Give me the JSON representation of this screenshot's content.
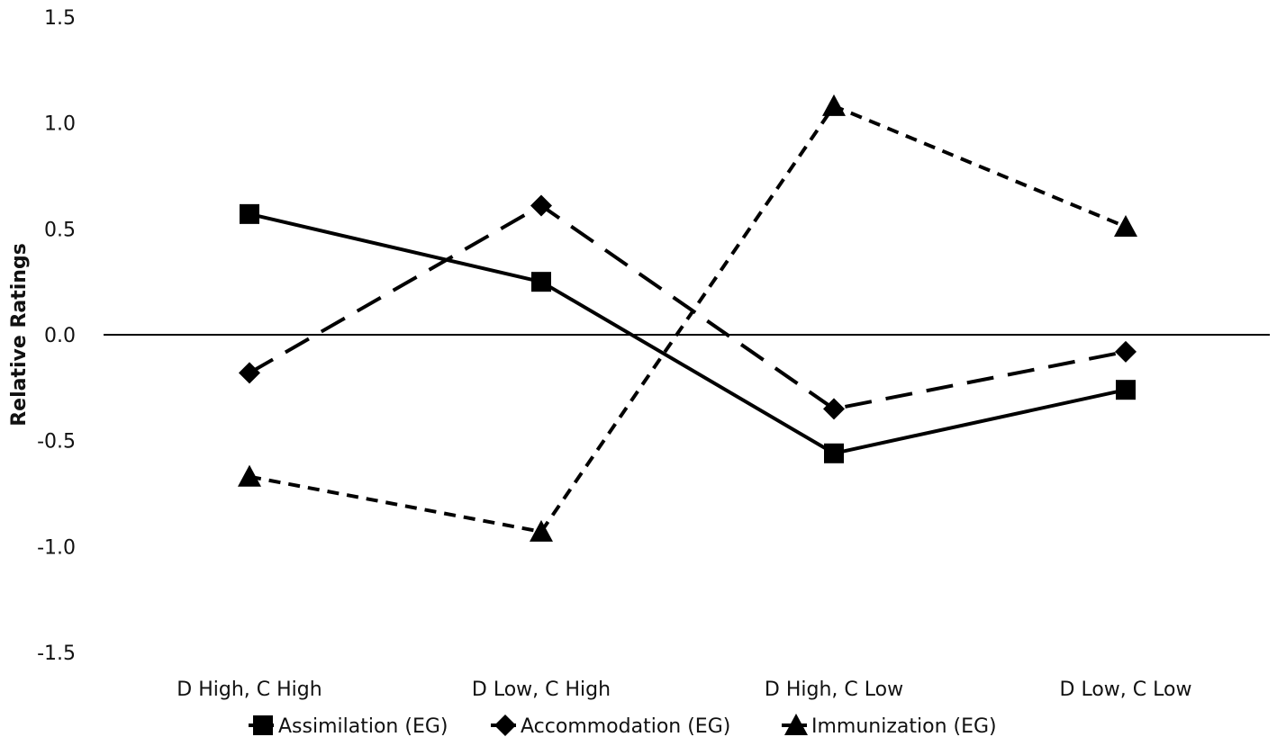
{
  "chart_data": {
    "type": "line",
    "categories": [
      "D High, C High",
      "D Low, C High",
      "D High, C Low",
      "D Low, C Low"
    ],
    "ylabel": "Relative Ratings",
    "xlabel": "",
    "title": "",
    "ylim": [
      -1.5,
      1.5
    ],
    "yticks": [
      "1.5",
      "1.0",
      "0.5",
      "0.0",
      "-0.5",
      "-1.0",
      "-1.5"
    ],
    "ytick_values": [
      1.5,
      1.0,
      0.5,
      0.0,
      -0.5,
      -1.0,
      -1.5
    ],
    "grid": false,
    "legend_position": "bottom",
    "series": [
      {
        "name": "Assimilation (EG)",
        "values": [
          0.57,
          0.25,
          -0.56,
          -0.26
        ],
        "marker": "square",
        "dash": "solid",
        "color": "#000000"
      },
      {
        "name": "Accommodation (EG)",
        "values": [
          -0.18,
          0.61,
          -0.35,
          -0.08
        ],
        "marker": "diamond",
        "dash": "long-dash",
        "color": "#000000"
      },
      {
        "name": "Immunization (EG)",
        "values": [
          -0.67,
          -0.93,
          1.08,
          0.51
        ],
        "marker": "triangle",
        "dash": "short-dash",
        "color": "#000000"
      }
    ]
  }
}
